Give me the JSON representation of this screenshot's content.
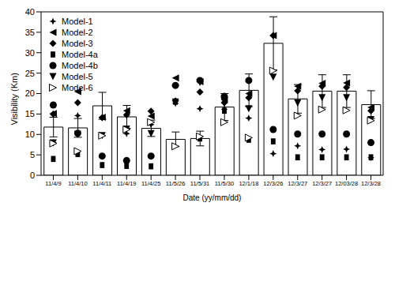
{
  "chart_data": {
    "type": "bar",
    "x_label": "Date (yy/mm/dd)",
    "y_label": "Visibility (Km)",
    "categories": [
      "11/4/9",
      "11/4/10",
      "11/4/11",
      "11/4/19",
      "11/4/25",
      "11/5/26",
      "11/5/31",
      "11/5/30",
      "12/1/18",
      "12/3/26",
      "12/3/27",
      "12/3/27",
      "12/03/28",
      "12/3/28"
    ],
    "values": [
      11.8,
      11.6,
      17.0,
      14.3,
      11.5,
      8.8,
      9.0,
      16.7,
      20.8,
      32.3,
      18.7,
      20.6,
      20.6,
      17.3
    ],
    "errors": [
      2.4,
      2.3,
      3.3,
      2.8,
      2.0,
      1.8,
      1.8,
      3.3,
      4.0,
      6.5,
      3.5,
      4.0,
      4.0,
      3.4
    ],
    "color": "#000000",
    "ylim": [
      0,
      40
    ],
    "yticks": [
      0,
      5,
      10,
      15,
      20,
      25,
      30,
      35,
      40
    ],
    "legend": "top-left",
    "series": [
      {
        "name": "Model-1",
        "type": "scatter",
        "marker": "star4",
        "color": "#000000",
        "values": [
          8.0,
          14.6,
          14.2,
          10.2,
          12.4,
          17.6,
          16.3,
          16.2,
          14.0,
          5.3,
          7.2,
          6.3,
          6.4,
          4.3
        ]
      },
      {
        "name": "Model-2",
        "type": "scatter",
        "marker": "triangle-left",
        "color": "#000000",
        "values": [
          15.1,
          20.5,
          14.2,
          15.8,
          14.5,
          23.8,
          22.9,
          18.5,
          20.0,
          34.2,
          21.8,
          22.5,
          22.6,
          16.6
        ]
      },
      {
        "name": "Model-3",
        "type": "scatter",
        "marker": "diamond",
        "color": "#000000",
        "values": [
          15.0,
          17.8,
          14.1,
          14.8,
          15.7,
          18.2,
          20.4,
          17.8,
          19.0,
          34.2,
          20.7,
          21.8,
          21.5,
          15.8
        ]
      },
      {
        "name": "Model-4a",
        "type": "scatter",
        "marker": "square",
        "color": "#000000",
        "values": [
          4.0,
          5.2,
          2.5,
          2.3,
          2.2,
          18.0,
          9.0,
          15.8,
          8.7,
          8.3,
          4.4,
          4.4,
          4.4,
          4.4
        ]
      },
      {
        "name": "Model-4b",
        "type": "scatter",
        "marker": "circle",
        "color": "#000000",
        "values": [
          17.2,
          10.3,
          4.7,
          3.6,
          4.7,
          22.0,
          23.2,
          19.3,
          23.2,
          11.2,
          10.1,
          10.1,
          10.1,
          8.0
        ]
      },
      {
        "name": "Model-5",
        "type": "scatter",
        "marker": "triangle-down",
        "color": "#000000",
        "values": [
          7.9,
          10.0,
          9.7,
          11.3,
          10.2,
          17.9,
          22.7,
          18.1,
          16.3,
          24.0,
          17.7,
          19.0,
          19.0,
          13.6
        ]
      },
      {
        "name": "Model-6",
        "type": "scatter",
        "marker": "triangle-right-open",
        "color": "#000000",
        "values": [
          7.8,
          5.9,
          9.7,
          11.2,
          13.0,
          7.1,
          9.5,
          13.0,
          9.2,
          25.6,
          14.6,
          16.1,
          15.9,
          13.4
        ]
      }
    ]
  }
}
